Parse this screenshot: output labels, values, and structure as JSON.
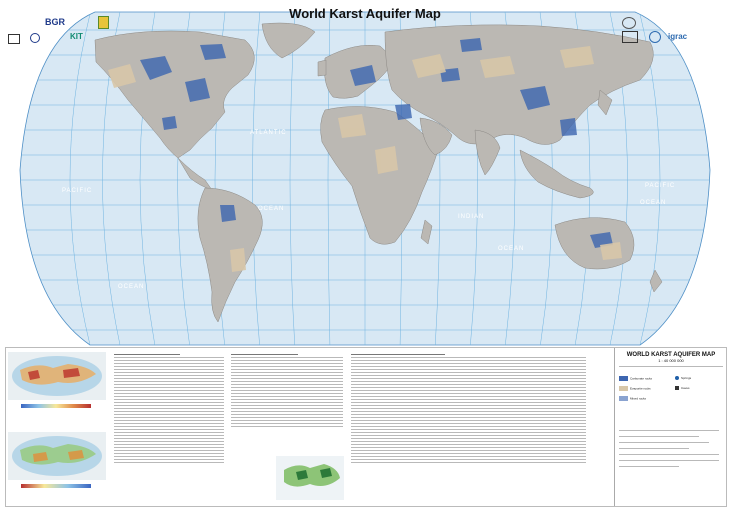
{
  "map": {
    "title": "World Karst Aquifer Map",
    "ocean_labels": {
      "atlantic": "ATLANTIC",
      "ocean_atlantic": "OCEAN",
      "pacific_west": "PACIFIC",
      "ocean_pacific_west": "OCEAN",
      "indian": "INDIAN",
      "ocean_indian": "OCEAN",
      "pacific_east": "PACIFIC",
      "ocean_pacific_east": "OCEAN"
    },
    "colors": {
      "ocean": "#d8e8f4",
      "land": "#bbb8b3",
      "karst_carbonate": "#3d66b0",
      "karst_evaporite": "#d8c7a8",
      "graticule": "#6fb3e0",
      "page": "#ffffff"
    }
  },
  "logos": {
    "bgr": "BGR",
    "kit": "KIT",
    "igrac": "igrac"
  },
  "legend": {
    "title": "WORLD KARST AQUIFER MAP",
    "scale": "1 : 40 000 000",
    "items": [
      "Carbonate rocks",
      "Evaporite rocks",
      "Mixed rocks",
      "Springs",
      "Caves"
    ]
  }
}
